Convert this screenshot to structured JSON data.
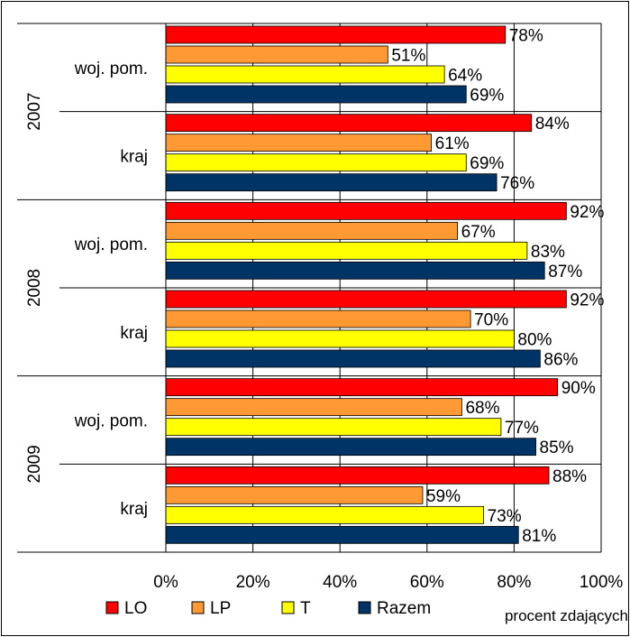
{
  "chart_data": {
    "type": "bar",
    "orientation": "horizontal",
    "x_axis_title": "procent zdających",
    "x_ticks": [
      "0%",
      "20%",
      "40%",
      "60%",
      "80%",
      "100%"
    ],
    "xlim": [
      0,
      100
    ],
    "value_suffix": "%",
    "grid": "vertical",
    "legend_position": "bottom-left",
    "groups": [
      {
        "year": "2007",
        "rows": [
          {
            "label": "woj. pom.",
            "values": [
              78,
              51,
              64,
              69
            ]
          },
          {
            "label": "kraj",
            "values": [
              84,
              61,
              69,
              76
            ]
          }
        ]
      },
      {
        "year": "2008",
        "rows": [
          {
            "label": "woj. pom.",
            "values": [
              92,
              67,
              83,
              87
            ]
          },
          {
            "label": "kraj",
            "values": [
              92,
              70,
              80,
              86
            ]
          }
        ]
      },
      {
        "year": "2009",
        "rows": [
          {
            "label": "woj. pom.",
            "values": [
              90,
              68,
              77,
              85
            ]
          },
          {
            "label": "kraj",
            "values": [
              88,
              59,
              73,
              81
            ]
          }
        ]
      }
    ],
    "series": [
      {
        "name": "LO",
        "color": "#ff0000"
      },
      {
        "name": "LP",
        "color": "#ff9933"
      },
      {
        "name": "T",
        "color": "#ffff00"
      },
      {
        "name": "Razem",
        "color": "#003366"
      }
    ]
  }
}
